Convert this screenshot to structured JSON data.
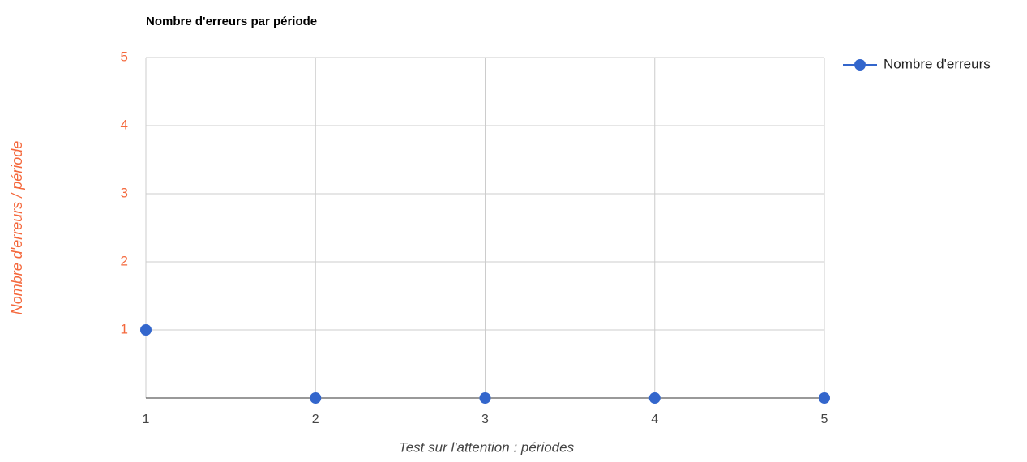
{
  "chart_data": {
    "type": "line",
    "title": "Nombre d'erreurs par période",
    "x_label": "Test sur l'attention : périodes",
    "y_label": "Nombre d'erreurs / période",
    "x": [
      1,
      2,
      3,
      4,
      5
    ],
    "series": [
      {
        "name": "Nombre d'erreurs",
        "color": "#3366cc",
        "values": [
          1,
          0,
          0,
          0,
          0
        ]
      }
    ],
    "show_line": false,
    "xlim": [
      1,
      5
    ],
    "xticks": [
      1,
      2,
      3,
      4,
      5
    ],
    "ylim": [
      0,
      5
    ],
    "yticks": [
      1,
      2,
      3,
      4,
      5
    ],
    "y_axis_color": "#f4683c",
    "grid": true,
    "legend": "right"
  }
}
